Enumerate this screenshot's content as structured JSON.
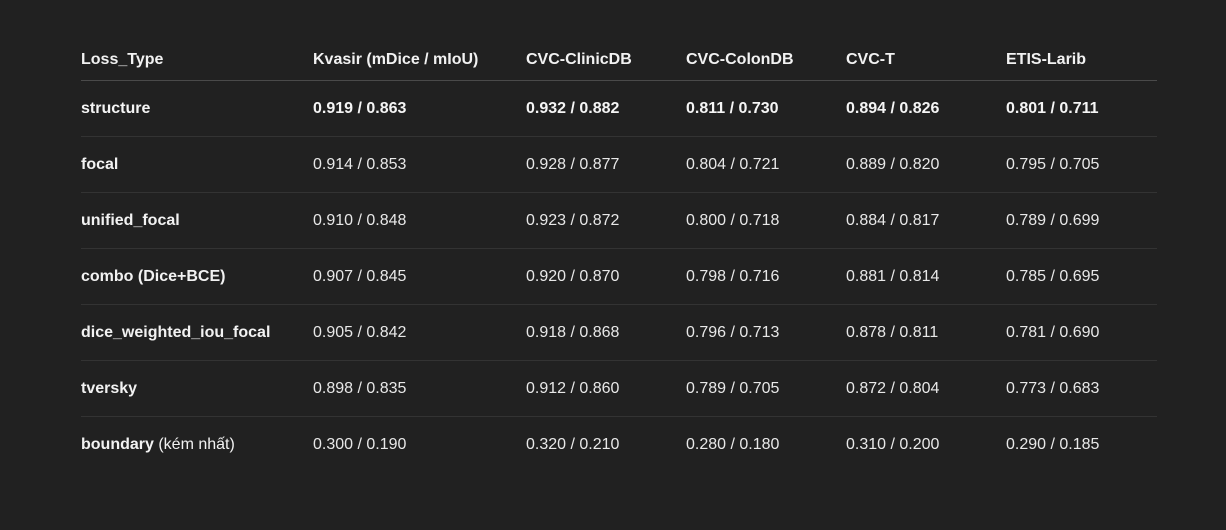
{
  "table": {
    "headers": [
      "Loss_Type",
      "Kvasir (mDice / mIoU)",
      "CVC-ClinicDB",
      "CVC-ColonDB",
      "CVC-T",
      "ETIS-Larib"
    ],
    "rows": [
      {
        "name": "structure",
        "note": "",
        "values": [
          "0.919 / 0.863",
          "0.932 / 0.882",
          "0.811 / 0.730",
          "0.894 / 0.826",
          "0.801 / 0.711"
        ]
      },
      {
        "name": "focal",
        "note": "",
        "values": [
          "0.914 / 0.853",
          "0.928 / 0.877",
          "0.804 / 0.721",
          "0.889 / 0.820",
          "0.795 / 0.705"
        ]
      },
      {
        "name": "unified_focal",
        "note": "",
        "values": [
          "0.910 / 0.848",
          "0.923 / 0.872",
          "0.800 / 0.718",
          "0.884 / 0.817",
          "0.789 / 0.699"
        ]
      },
      {
        "name": "combo (Dice+BCE)",
        "note": "",
        "values": [
          "0.907 / 0.845",
          "0.920 / 0.870",
          "0.798 / 0.716",
          "0.881 / 0.814",
          "0.785 / 0.695"
        ]
      },
      {
        "name": "dice_weighted_iou_focal",
        "note": "",
        "values": [
          "0.905 / 0.842",
          "0.918 / 0.868",
          "0.796 / 0.713",
          "0.878 / 0.811",
          "0.781 / 0.690"
        ]
      },
      {
        "name": "tversky",
        "note": "",
        "values": [
          "0.898 / 0.835",
          "0.912 / 0.860",
          "0.789 / 0.705",
          "0.872 / 0.804",
          "0.773 / 0.683"
        ]
      },
      {
        "name": "boundary",
        "note": "(kém nhất)",
        "values": [
          "0.300 / 0.190",
          "0.320 / 0.210",
          "0.280 / 0.180",
          "0.310 / 0.200",
          "0.290 / 0.185"
        ]
      }
    ]
  }
}
